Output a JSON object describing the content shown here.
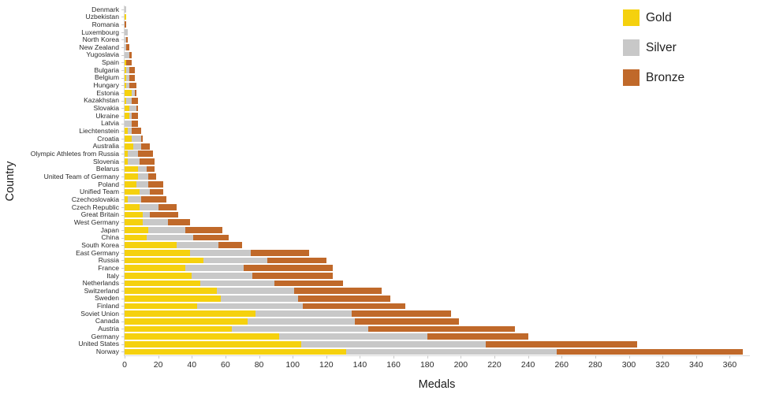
{
  "chart_data": {
    "type": "bar",
    "orientation": "horizontal",
    "stacked": true,
    "xlabel": "Medals",
    "ylabel": "Country",
    "xlim": [
      0,
      372
    ],
    "grid": false,
    "legend_position": "top-right",
    "background": "#ffffff",
    "x_ticks": [
      0,
      20,
      40,
      60,
      80,
      100,
      120,
      140,
      160,
      180,
      200,
      220,
      240,
      260,
      280,
      300,
      320,
      340,
      360
    ],
    "categories": [
      "Denmark",
      "Uzbekistan",
      "Romania",
      "Luxembourg",
      "North Korea",
      "New Zealand",
      "Yugoslavia",
      "Spain",
      "Bulgaria",
      "Belgium",
      "Hungary",
      "Estonia",
      "Kazakhstan",
      "Slovakia",
      "Ukraine",
      "Latvia",
      "Liechtenstein",
      "Croatia",
      "Australia",
      "Olympic Athletes from Russia",
      "Slovenia",
      "Belarus",
      "United Team of Germany",
      "Poland",
      "Unified Team",
      "Czechoslovakia",
      "Czech Republic",
      "Great Britain",
      "West Germany",
      "Japan",
      "China",
      "South Korea",
      "East Germany",
      "Russia",
      "France",
      "Italy",
      "Netherlands",
      "Switzerland",
      "Sweden",
      "Finland",
      "Soviet Union",
      "Canada",
      "Austria",
      "Germany",
      "United States",
      "Norway"
    ],
    "series": [
      {
        "name": "Gold",
        "color": "#F5D10E",
        "values": [
          0,
          1,
          0,
          0,
          0,
          0,
          0,
          1,
          1,
          1,
          1,
          4,
          1,
          3,
          3,
          0,
          2,
          4,
          5,
          2,
          2,
          8,
          8,
          7,
          9,
          2,
          9,
          11,
          11,
          14,
          13,
          31,
          39,
          47,
          36,
          40,
          45,
          55,
          57,
          43,
          78,
          73,
          64,
          92,
          105,
          132
        ]
      },
      {
        "name": "Silver",
        "color": "#C8C8C8",
        "values": [
          1,
          0,
          0,
          2,
          1,
          1,
          3,
          0,
          2,
          2,
          2,
          2,
          3,
          4,
          1,
          4,
          2,
          6,
          5,
          6,
          7,
          5,
          6,
          7,
          6,
          8,
          11,
          4,
          15,
          22,
          28,
          25,
          36,
          38,
          35,
          36,
          44,
          46,
          46,
          63,
          57,
          64,
          81,
          88,
          110,
          125
        ]
      },
      {
        "name": "Bronze",
        "color": "#C0692A",
        "values": [
          0,
          0,
          1,
          0,
          1,
          2,
          1,
          3,
          3,
          3,
          4,
          1,
          4,
          1,
          4,
          4,
          6,
          1,
          5,
          9,
          9,
          5,
          5,
          9,
          8,
          15,
          11,
          17,
          13,
          22,
          21,
          14,
          35,
          35,
          53,
          48,
          41,
          52,
          55,
          61,
          59,
          62,
          87,
          60,
          90,
          111
        ]
      }
    ]
  }
}
